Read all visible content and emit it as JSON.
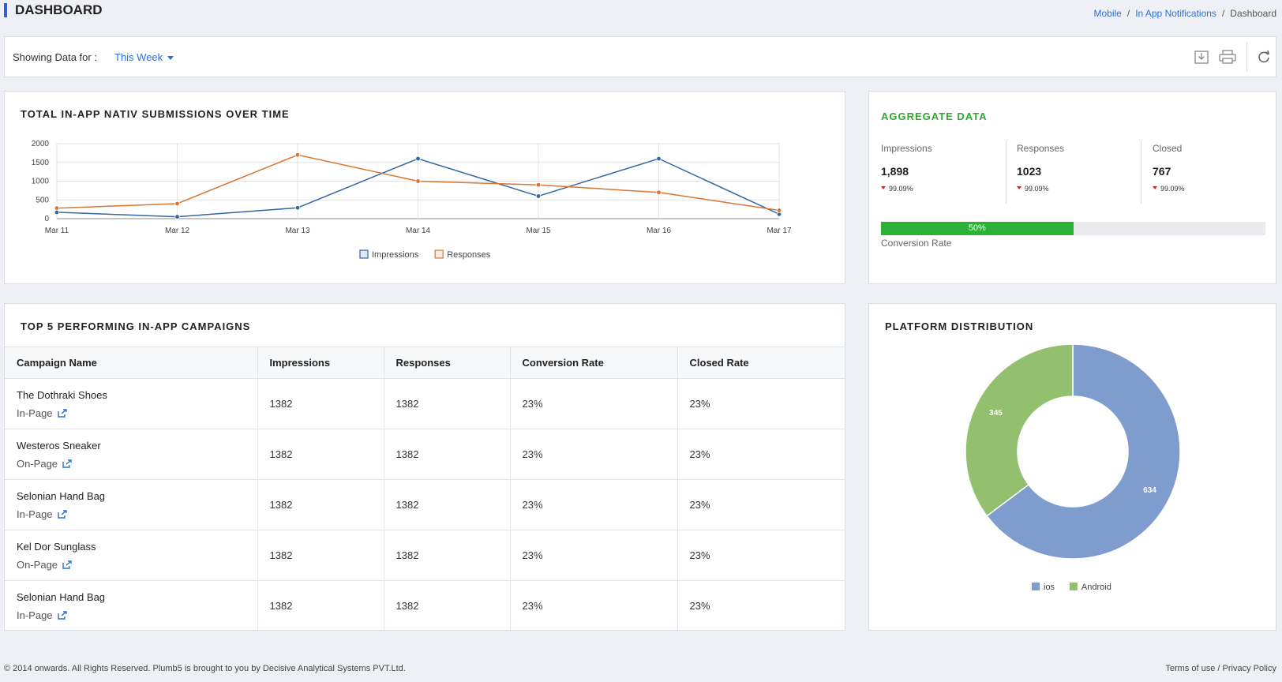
{
  "header": {
    "title": "DASHBOARD",
    "breadcrumb": [
      "Mobile",
      "In App Notifications",
      "Dashboard"
    ]
  },
  "filter": {
    "label": "Showing Data for :",
    "value": "This Week"
  },
  "toolbar": {
    "download_icon": "download-icon",
    "print_icon": "print-icon",
    "refresh_icon": "refresh-icon"
  },
  "line_panel": {
    "title": "TOTAL IN-APP NATIV SUBMISSIONS OVER TIME"
  },
  "aggregate": {
    "title": "AGGREGATE DATA",
    "metrics": [
      {
        "label": "Impressions",
        "value": "1,898",
        "change": "99.09%"
      },
      {
        "label": "Responses",
        "value": "1023",
        "change": "99.09%"
      },
      {
        "label": "Closed",
        "value": "767",
        "change": "99.09%"
      }
    ],
    "conversion": {
      "percent": 50,
      "label_text": "50%",
      "caption": "Conversion Rate"
    }
  },
  "campaigns": {
    "title": "TOP 5 PERFORMING IN-APP CAMPAIGNS",
    "columns": [
      "Campaign Name",
      "Impressions",
      "Responses",
      "Conversion Rate",
      "Closed Rate"
    ],
    "rows": [
      {
        "name": "The Dothraki Shoes",
        "type": "In-Page",
        "impressions": "1382",
        "responses": "1382",
        "conversion": "23%",
        "closed": "23%"
      },
      {
        "name": "Westeros Sneaker",
        "type": "On-Page",
        "impressions": "1382",
        "responses": "1382",
        "conversion": "23%",
        "closed": "23%"
      },
      {
        "name": "Selonian Hand Bag",
        "type": "In-Page",
        "impressions": "1382",
        "responses": "1382",
        "conversion": "23%",
        "closed": "23%"
      },
      {
        "name": "Kel Dor Sunglass",
        "type": "On-Page",
        "impressions": "1382",
        "responses": "1382",
        "conversion": "23%",
        "closed": "23%"
      },
      {
        "name": "Selonian Hand Bag",
        "type": "In-Page",
        "impressions": "1382",
        "responses": "1382",
        "conversion": "23%",
        "closed": "23%"
      }
    ]
  },
  "platform": {
    "title": "PLATFORM DISTRIBUTION"
  },
  "chart_data": [
    {
      "type": "line",
      "categories": [
        "Mar 11",
        "Mar 12",
        "Mar 13",
        "Mar 14",
        "Mar 15",
        "Mar 16",
        "Mar 17"
      ],
      "series": [
        {
          "name": "Impressions",
          "color": "#3465a4",
          "values": [
            170,
            50,
            290,
            1600,
            600,
            1600,
            120
          ]
        },
        {
          "name": "Responses",
          "color": "#d9762f",
          "values": [
            280,
            400,
            1700,
            1000,
            900,
            700,
            220
          ]
        }
      ],
      "yticks": [
        0,
        500,
        1000,
        1500,
        2000
      ],
      "ylim": [
        0,
        2000
      ],
      "grid": true,
      "legend": "bottom"
    },
    {
      "type": "pie",
      "donut": true,
      "slices": [
        {
          "label": "ios",
          "value": 634,
          "color": "#7f9ccf"
        },
        {
          "label": "Android",
          "value": 345,
          "color": "#93c06e"
        }
      ],
      "legend": "bottom"
    }
  ],
  "footer": {
    "copyright": "© 2014 onwards. All Rights Reserved. Plumb5 is brought to you by Decisive Analytical Systems PVT.Ltd.",
    "terms": "Terms of use",
    "privacy": "Privacy Policy"
  }
}
